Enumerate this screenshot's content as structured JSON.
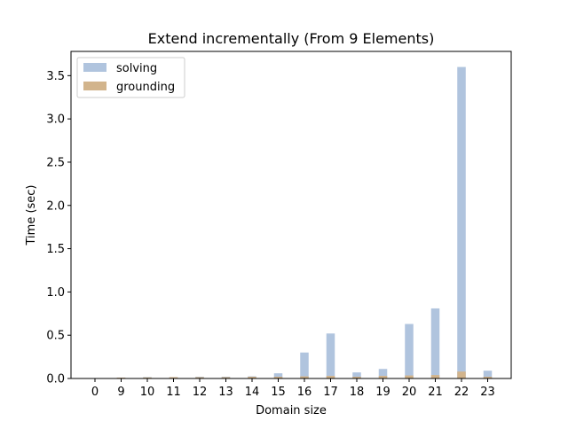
{
  "chart_data": {
    "type": "bar",
    "title": "Extend incrementally (From 9 Elements)",
    "xlabel": "Domain size",
    "ylabel": "Time (sec)",
    "ylim": [
      0,
      3.78
    ],
    "yticks": [
      0.0,
      0.5,
      1.0,
      1.5,
      2.0,
      2.5,
      3.0,
      3.5
    ],
    "ytick_labels": [
      "0.0",
      "0.5",
      "1.0",
      "1.5",
      "2.0",
      "2.5",
      "3.0",
      "3.5"
    ],
    "categories": [
      "0",
      "9",
      "10",
      "11",
      "12",
      "13",
      "14",
      "15",
      "16",
      "17",
      "18",
      "19",
      "20",
      "21",
      "22",
      "23"
    ],
    "series": [
      {
        "name": "solving",
        "color": "#b0c4de",
        "values": [
          0.0,
          0.01,
          0.015,
          0.015,
          0.02,
          0.02,
          0.025,
          0.06,
          0.3,
          0.52,
          0.07,
          0.11,
          0.63,
          0.81,
          3.6,
          0.09
        ]
      },
      {
        "name": "grounding",
        "color": "#d2b48c",
        "values": [
          0.0,
          0.01,
          0.012,
          0.015,
          0.015,
          0.015,
          0.02,
          0.02,
          0.025,
          0.03,
          0.02,
          0.03,
          0.035,
          0.04,
          0.08,
          0.02
        ]
      }
    ],
    "grid": false,
    "legend_position": "top-left"
  }
}
